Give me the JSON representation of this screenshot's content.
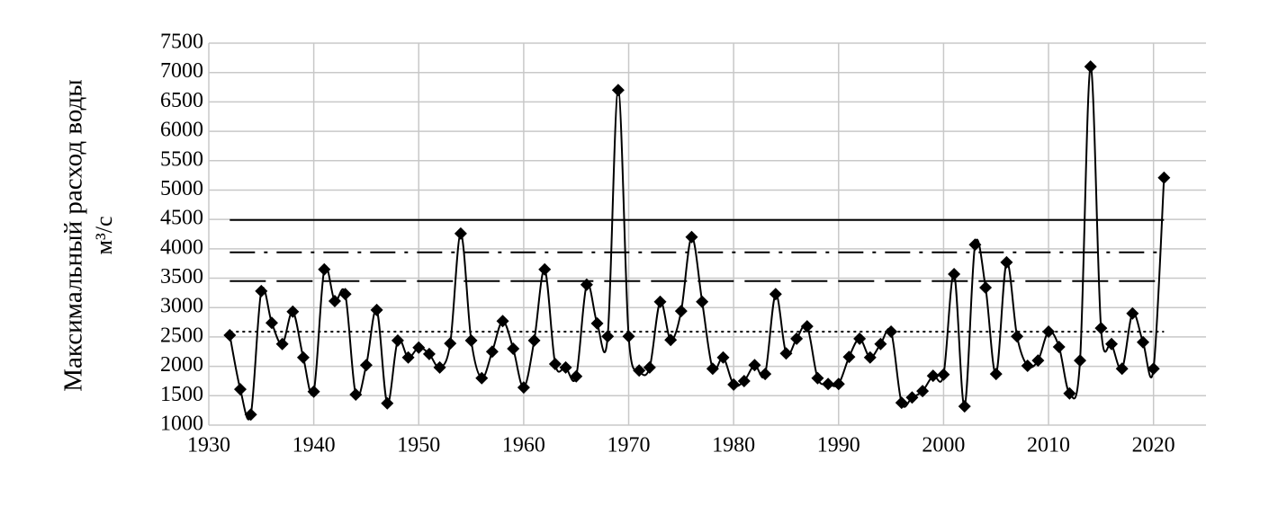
{
  "chart_data": {
    "type": "line",
    "y_label": "Максимальный расход воды",
    "y_label_unit": "м³/с",
    "x": [
      1932,
      1933,
      1934,
      1935,
      1936,
      1937,
      1938,
      1939,
      1940,
      1941,
      1942,
      1943,
      1944,
      1945,
      1946,
      1947,
      1948,
      1949,
      1950,
      1951,
      1952,
      1953,
      1954,
      1955,
      1956,
      1957,
      1958,
      1959,
      1960,
      1961,
      1962,
      1963,
      1964,
      1965,
      1966,
      1967,
      1968,
      1969,
      1970,
      1971,
      1972,
      1973,
      1974,
      1975,
      1976,
      1977,
      1978,
      1979,
      1980,
      1981,
      1982,
      1983,
      1984,
      1985,
      1986,
      1987,
      1988,
      1989,
      1990,
      1991,
      1992,
      1993,
      1994,
      1995,
      1996,
      1997,
      1998,
      1999,
      2000,
      2001,
      2002,
      2003,
      2004,
      2005,
      2006,
      2007,
      2008,
      2009,
      2010,
      2011,
      2012,
      2013,
      2014,
      2015,
      2016,
      2017,
      2018,
      2019,
      2020,
      2021
    ],
    "series": [
      {
        "color": "#000000",
        "values": [
          2530,
          1610,
          1180,
          3280,
          2740,
          2380,
          2930,
          2150,
          1570,
          3650,
          3110,
          3230,
          1520,
          2020,
          2960,
          1370,
          2440,
          2150,
          2320,
          2210,
          1980,
          2390,
          4260,
          2440,
          1800,
          2250,
          2770,
          2300,
          1640,
          2440,
          3650,
          2040,
          1980,
          1830,
          3390,
          2730,
          2510,
          6700,
          2510,
          1930,
          1980,
          3100,
          2450,
          2940,
          4200,
          3100,
          1960,
          2150,
          1690,
          1750,
          2020,
          1870,
          3230,
          2220,
          2470,
          2680,
          1800,
          1700,
          1700,
          2160,
          2470,
          2150,
          2380,
          2590,
          1380,
          1470,
          1580,
          1840,
          1860,
          3570,
          1320,
          4070,
          3340,
          1870,
          3770,
          2510,
          2010,
          2100,
          2590,
          2330,
          1540,
          2100,
          7100,
          2650,
          2380,
          1960,
          2900,
          2410,
          1960,
          5210
        ]
      }
    ],
    "reference_lines": [
      {
        "value": 4490,
        "style": "solid",
        "x": [
          1932,
          2021
        ]
      },
      {
        "value": 3940,
        "style": "dash-dot",
        "x": [
          1932,
          2021
        ]
      },
      {
        "value": 3450,
        "style": "dashed",
        "x": [
          1932,
          2021
        ]
      },
      {
        "value": 2590,
        "style": "dotted",
        "x": [
          1932,
          2021
        ]
      }
    ],
    "xlim": [
      1930,
      2025
    ],
    "xticks": [
      1930,
      1940,
      1950,
      1960,
      1970,
      1980,
      1990,
      2000,
      2010,
      2020
    ],
    "ylim": [
      1000,
      7500
    ],
    "yticks": [
      1000,
      1500,
      2000,
      2500,
      3000,
      3500,
      4000,
      4500,
      5000,
      5500,
      6000,
      6500,
      7000,
      7500
    ],
    "grid": true
  }
}
